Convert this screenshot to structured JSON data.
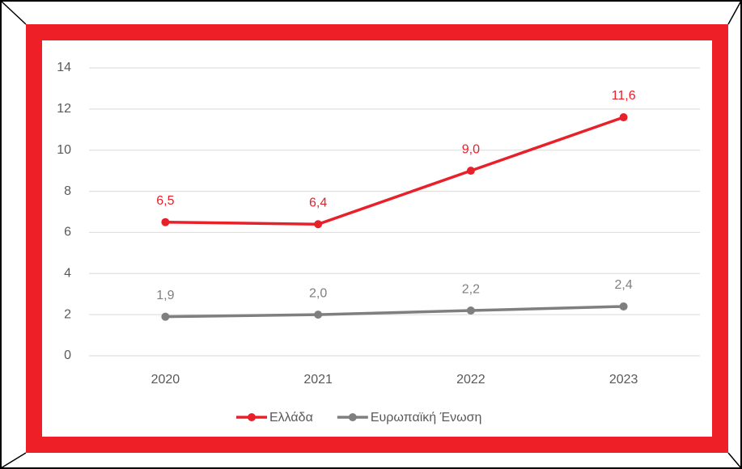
{
  "chart_data": {
    "type": "line",
    "categories": [
      "2020",
      "2021",
      "2022",
      "2023"
    ],
    "series": [
      {
        "name": "Ελλάδα",
        "color": "#e8202a",
        "values": [
          6.5,
          6.4,
          9.0,
          11.6
        ],
        "value_labels": [
          "6,5",
          "6,4",
          "9,0",
          "11,6"
        ]
      },
      {
        "name": "Ευρωπαϊκή Ένωση",
        "color": "#7f7f7f",
        "values": [
          1.9,
          2.0,
          2.2,
          2.4
        ],
        "value_labels": [
          "1,9",
          "2,0",
          "2,2",
          "2,4"
        ]
      }
    ],
    "ylim": [
      0,
      14
    ],
    "yticks": [
      0,
      2,
      4,
      6,
      8,
      10,
      12,
      14
    ],
    "grid": true,
    "legend": "bottom"
  }
}
